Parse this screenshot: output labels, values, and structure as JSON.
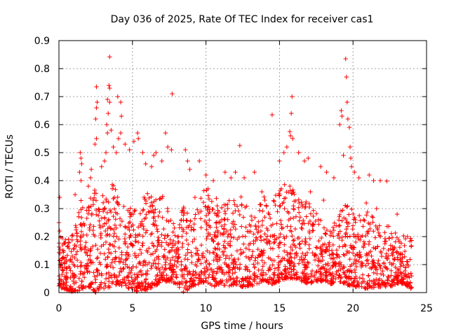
{
  "chart_data": {
    "type": "scatter",
    "title": "Day 036 of 2025, Rate Of TEC Index for receiver cas1",
    "xlabel": "GPS time / hours",
    "ylabel": "ROTI / TECUs",
    "xlim": [
      0,
      25
    ],
    "ylim": [
      0,
      0.9
    ],
    "xticks": [
      0,
      5,
      10,
      15,
      20,
      25
    ],
    "yticks": [
      0,
      0.1,
      0.2,
      0.3,
      0.4,
      0.5,
      0.6,
      0.7,
      0.8,
      0.9
    ],
    "grid": true,
    "marker": "+",
    "color": "#ff0000",
    "series": [
      {
        "name": "cas1",
        "points": [
          [
            3.45,
            0.842
          ],
          [
            3.4,
            0.74
          ],
          [
            3.45,
            0.73
          ],
          [
            3.3,
            0.69
          ],
          [
            3.45,
            0.68
          ],
          [
            3.35,
            0.64
          ],
          [
            2.55,
            0.735
          ],
          [
            2.6,
            0.68
          ],
          [
            2.55,
            0.66
          ],
          [
            2.5,
            0.62
          ],
          [
            2.55,
            0.55
          ],
          [
            2.45,
            0.53
          ],
          [
            3.25,
            0.6
          ],
          [
            3.3,
            0.57
          ],
          [
            3.55,
            0.58
          ],
          [
            3.7,
            0.52
          ],
          [
            4.0,
            0.7
          ],
          [
            4.2,
            0.68
          ],
          [
            4.25,
            0.63
          ],
          [
            4.2,
            0.57
          ],
          [
            4.05,
            0.55
          ],
          [
            3.9,
            0.5
          ],
          [
            3.2,
            0.5
          ],
          [
            3.1,
            0.47
          ],
          [
            2.9,
            0.45
          ],
          [
            1.45,
            0.5
          ],
          [
            1.5,
            0.48
          ],
          [
            1.55,
            0.46
          ],
          [
            1.4,
            0.43
          ],
          [
            1.5,
            0.4
          ],
          [
            2.2,
            0.44
          ],
          [
            2.15,
            0.41
          ],
          [
            4.5,
            0.53
          ],
          [
            4.8,
            0.51
          ],
          [
            5.1,
            0.54
          ],
          [
            5.35,
            0.57
          ],
          [
            5.4,
            0.55
          ],
          [
            5.7,
            0.5
          ],
          [
            5.9,
            0.46
          ],
          [
            6.3,
            0.45
          ],
          [
            6.45,
            0.49
          ],
          [
            6.6,
            0.5
          ],
          [
            7.0,
            0.47
          ],
          [
            7.25,
            0.57
          ],
          [
            7.4,
            0.52
          ],
          [
            7.7,
            0.71
          ],
          [
            7.65,
            0.51
          ],
          [
            8.6,
            0.51
          ],
          [
            8.75,
            0.47
          ],
          [
            8.9,
            0.44
          ],
          [
            9.55,
            0.47
          ],
          [
            10.0,
            0.42
          ],
          [
            10.5,
            0.4
          ],
          [
            11.3,
            0.43
          ],
          [
            11.7,
            0.41
          ],
          [
            12.0,
            0.43
          ],
          [
            12.3,
            0.525
          ],
          [
            12.6,
            0.41
          ],
          [
            13.3,
            0.43
          ],
          [
            14.5,
            0.635
          ],
          [
            15.0,
            0.47
          ],
          [
            15.3,
            0.5
          ],
          [
            15.5,
            0.52
          ],
          [
            15.7,
            0.575
          ],
          [
            15.75,
            0.56
          ],
          [
            15.85,
            0.7
          ],
          [
            15.8,
            0.64
          ],
          [
            15.9,
            0.55
          ],
          [
            16.3,
            0.5
          ],
          [
            16.7,
            0.47
          ],
          [
            16.95,
            0.48
          ],
          [
            17.8,
            0.45
          ],
          [
            18.2,
            0.43
          ],
          [
            18.7,
            0.41
          ],
          [
            19.1,
            0.6
          ],
          [
            19.2,
            0.65
          ],
          [
            19.25,
            0.63
          ],
          [
            19.35,
            0.49
          ],
          [
            19.5,
            0.835
          ],
          [
            19.55,
            0.77
          ],
          [
            19.6,
            0.68
          ],
          [
            19.65,
            0.62
          ],
          [
            19.75,
            0.59
          ],
          [
            19.8,
            0.52
          ],
          [
            19.85,
            0.48
          ],
          [
            19.9,
            0.45
          ],
          [
            20.1,
            0.43
          ],
          [
            20.4,
            0.41
          ],
          [
            21.1,
            0.42
          ],
          [
            21.4,
            0.4
          ],
          [
            21.85,
            0.4
          ],
          [
            22.3,
            0.398
          ],
          [
            0.05,
            0.34
          ],
          [
            0.0,
            0.25
          ],
          [
            0.05,
            0.22
          ],
          [
            1.1,
            0.35
          ],
          [
            2.0,
            0.38
          ],
          [
            9.25,
            0.34
          ],
          [
            13.8,
            0.36
          ],
          [
            14.0,
            0.33
          ],
          [
            17.1,
            0.36
          ],
          [
            18.0,
            0.33
          ],
          [
            20.9,
            0.32
          ],
          [
            21.6,
            0.3
          ],
          [
            23.0,
            0.28
          ],
          [
            23.7,
            0.2
          ]
        ],
        "envelope": {
          "x": [
            0,
            0.5,
            1.0,
            1.5,
            2.0,
            2.5,
            3.0,
            3.5,
            4.0,
            4.5,
            5.0,
            5.5,
            6.0,
            6.5,
            7.0,
            7.5,
            8.0,
            8.5,
            9.0,
            9.5,
            10.0,
            10.5,
            11.0,
            11.5,
            12.0,
            12.5,
            13.0,
            13.5,
            14.0,
            14.5,
            15.0,
            15.5,
            16.0,
            16.5,
            17.0,
            17.5,
            18.0,
            18.5,
            19.0,
            19.5,
            20.0,
            20.5,
            21.0,
            21.5,
            22.0,
            22.5,
            23.0,
            23.5,
            24.0
          ],
          "high": [
            0.2,
            0.19,
            0.22,
            0.35,
            0.34,
            0.38,
            0.36,
            0.4,
            0.36,
            0.33,
            0.3,
            0.34,
            0.36,
            0.33,
            0.35,
            0.32,
            0.2,
            0.35,
            0.3,
            0.34,
            0.38,
            0.36,
            0.33,
            0.37,
            0.38,
            0.34,
            0.3,
            0.33,
            0.35,
            0.36,
            0.38,
            0.4,
            0.36,
            0.33,
            0.32,
            0.3,
            0.24,
            0.22,
            0.3,
            0.32,
            0.3,
            0.28,
            0.29,
            0.27,
            0.25,
            0.24,
            0.22,
            0.21,
            0.2
          ],
          "low": [
            0.02,
            0.01,
            0.0,
            0.01,
            0.02,
            0.0,
            0.01,
            0.02,
            0.03,
            0.02,
            0.01,
            0.0,
            0.01,
            0.02,
            0.04,
            0.04,
            0.03,
            0.0,
            0.02,
            0.03,
            0.04,
            0.02,
            0.03,
            0.02,
            0.03,
            0.02,
            0.02,
            0.03,
            0.04,
            0.03,
            0.04,
            0.05,
            0.05,
            0.04,
            0.03,
            0.04,
            0.04,
            0.03,
            0.04,
            0.03,
            0.02,
            0.02,
            0.01,
            0.02,
            0.02,
            0.02,
            0.03,
            0.03,
            0.01
          ],
          "x_range": [
            0,
            24
          ],
          "density_per_hour": 95
        }
      }
    ]
  }
}
